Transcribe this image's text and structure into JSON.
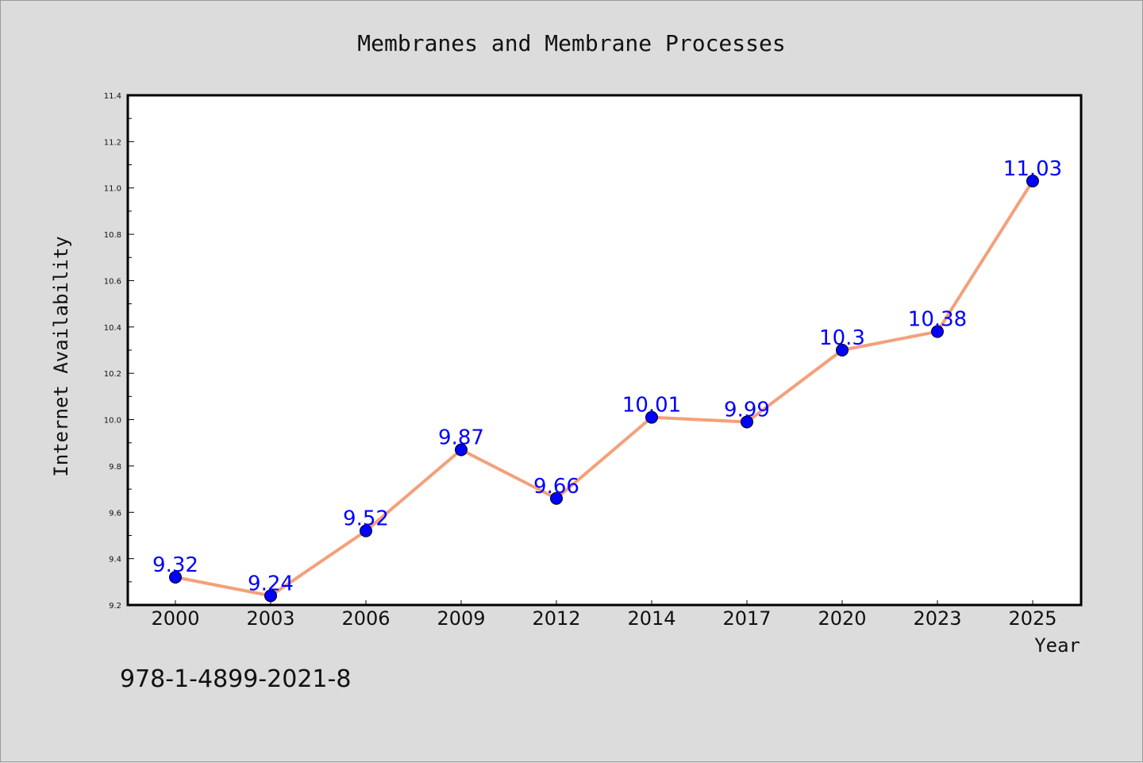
{
  "chart_data": {
    "type": "line",
    "title": "Membranes and Membrane Processes",
    "xlabel": "Year",
    "ylabel": "Internet Availability",
    "categories": [
      "2000",
      "2003",
      "2006",
      "2009",
      "2012",
      "2014",
      "2017",
      "2020",
      "2023",
      "2025"
    ],
    "series": [
      {
        "values": [
          9.32,
          9.24,
          9.52,
          9.87,
          9.66,
          10.01,
          9.99,
          10.3,
          10.38,
          11.03
        ],
        "labels": [
          "9.32",
          "9.24",
          "9.52",
          "9.87",
          "9.66",
          "10.01",
          "9.99",
          "10.3",
          "10.38",
          "11.03"
        ]
      }
    ],
    "ylim": [
      9.2,
      11.4
    ],
    "yticks": [
      "9.2",
      "9.4",
      "9.6",
      "9.8",
      "10.0",
      "10.2",
      "10.4",
      "10.6",
      "10.8",
      "11.0",
      "11.2",
      "11.4"
    ],
    "grid": false,
    "legend": "none"
  },
  "footnote": "978-1-4899-2021-8",
  "colors": {
    "line": "#f4a07a",
    "marker": "#0000ff",
    "data_label": "#0000ff",
    "background": "#dcdcdc",
    "plot_area": "#ffffff"
  }
}
